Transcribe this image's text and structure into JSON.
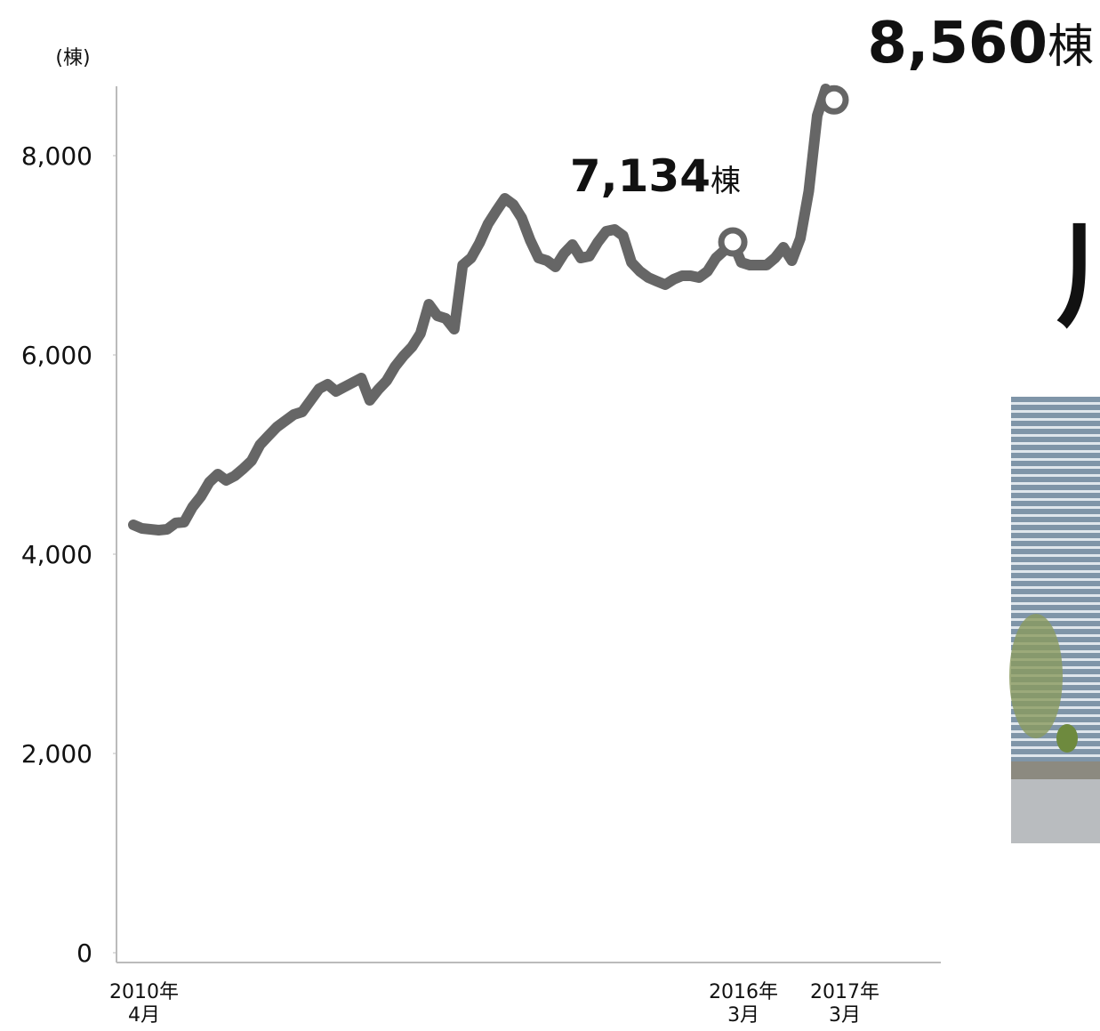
{
  "chart_data": {
    "type": "line",
    "y_unit_label": "(棟)",
    "ylim": [
      0,
      8700
    ],
    "yticks": [
      0,
      {
        "value": 2000,
        "label": "2,000"
      },
      {
        "value": 4000,
        "label": "4,000"
      },
      {
        "value": 6000,
        "label": "6,000"
      },
      {
        "value": 8000,
        "label": "8,000"
      }
    ],
    "categories": [
      "2010年\n4月",
      null,
      null,
      null,
      null,
      null,
      null,
      null,
      null,
      null,
      null,
      null,
      null,
      null,
      null,
      null,
      null,
      null,
      null,
      null,
      null,
      null,
      null,
      null,
      null,
      null,
      null,
      null,
      null,
      null,
      null,
      null,
      null,
      null,
      null,
      null,
      null,
      null,
      null,
      null,
      null,
      null,
      null,
      null,
      null,
      null,
      null,
      null,
      null,
      null,
      null,
      null,
      null,
      null,
      null,
      null,
      null,
      null,
      null,
      null,
      null,
      null,
      null,
      null,
      null,
      null,
      null,
      null,
      null,
      null,
      null,
      "2016年\n3月",
      null,
      null,
      null,
      null,
      null,
      null,
      null,
      null,
      null,
      null,
      null,
      "2017年\n3月"
    ],
    "values": [
      4295,
      4259,
      4250,
      4241,
      4250,
      4313,
      4321,
      4473,
      4580,
      4723,
      4804,
      4741,
      4786,
      4857,
      4938,
      5098,
      5188,
      5277,
      5339,
      5402,
      5429,
      5545,
      5661,
      5705,
      5634,
      5679,
      5723,
      5768,
      5545,
      5652,
      5741,
      5884,
      5991,
      6080,
      6214,
      6509,
      6393,
      6366,
      6259,
      6902,
      6973,
      7125,
      7313,
      7446,
      7571,
      7509,
      7375,
      7152,
      6973,
      6946,
      6884,
      7018,
      7107,
      6973,
      6991,
      7130,
      7241,
      7259,
      7196,
      6929,
      6839,
      6777,
      6740,
      6705,
      6760,
      6795,
      6795,
      6777,
      6839,
      6973,
      7050,
      7134,
      6929,
      6902,
      6902,
      6902,
      6973,
      7080,
      6946,
      7170,
      7643,
      8402,
      8670,
      8560
    ],
    "value_labels": [
      null,
      null,
      null,
      null,
      null,
      null,
      null,
      null,
      null,
      null,
      null,
      null,
      null,
      null,
      null,
      null,
      null,
      null,
      null,
      null,
      null,
      null,
      null,
      null,
      null,
      null,
      null,
      null,
      null,
      null,
      null,
      null,
      null,
      null,
      null,
      null,
      null,
      null,
      null,
      null,
      null,
      null,
      null,
      null,
      null,
      null,
      null,
      null,
      null,
      null,
      null,
      null,
      null,
      null,
      null,
      null,
      null,
      null,
      null,
      null,
      null,
      null,
      null,
      null,
      null,
      null,
      null,
      null,
      null,
      null,
      null,
      "7,134",
      null,
      null,
      null,
      null,
      null,
      null,
      null,
      null,
      null,
      null,
      null,
      "8,560"
    ],
    "value_label_unit": "棟",
    "color": "#666666",
    "side_text": "川"
  }
}
